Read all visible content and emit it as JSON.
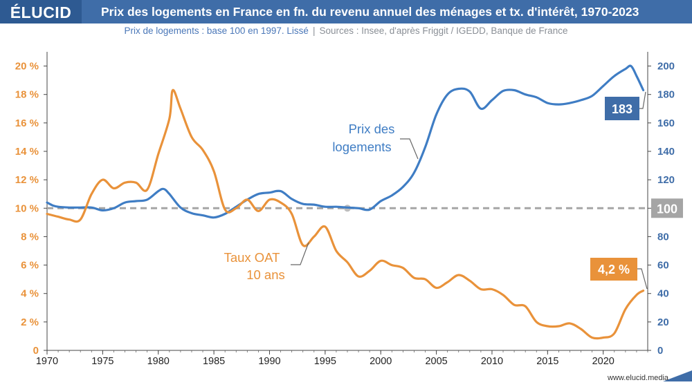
{
  "header": {
    "logo": "ÉLUCID",
    "title": "Prix des logements en France en fn. du revenu annuel des ménages et tx. d'intérêt, 1970-2023"
  },
  "subtitle": {
    "left": "Prix de logements : base 100 en 1997. Lissé",
    "separator": "|",
    "right": "Sources : Insee, d'après Friggit / IGEDD, Banque de France"
  },
  "footer": {
    "url": "www.elucid.media"
  },
  "colors": {
    "blue": "#3f7dc4",
    "orange": "#e9923a",
    "reference": "#a5a5a5",
    "header": "#3f6da8"
  },
  "chart_data": {
    "type": "line",
    "xlim": [
      1970,
      2024
    ],
    "x_ticks": [
      1970,
      1975,
      1980,
      1985,
      1990,
      1995,
      2000,
      2005,
      2010,
      2015,
      2020
    ],
    "left_axis": {
      "ylim": [
        0,
        21
      ],
      "ticks": [
        "0",
        "2 %",
        "4 %",
        "6 %",
        "8 %",
        "10 %",
        "12 %",
        "14 %",
        "16 %",
        "18 %",
        "20 %"
      ],
      "tick_values": [
        0,
        2,
        4,
        6,
        8,
        10,
        12,
        14,
        16,
        18,
        20
      ]
    },
    "right_axis": {
      "ylim": [
        0,
        210
      ],
      "ticks": [
        "0",
        "20",
        "40",
        "60",
        "80",
        "100",
        "120",
        "140",
        "160",
        "180",
        "200"
      ],
      "tick_values": [
        0,
        20,
        40,
        60,
        80,
        100,
        120,
        140,
        160,
        180,
        200
      ]
    },
    "reference_line": {
      "value": 100,
      "label": "100",
      "marker_x": 1997
    },
    "series": [
      {
        "name": "Prix des logements",
        "axis": "right",
        "x": [
          1970,
          1970.5,
          1971,
          1972,
          1973,
          1974,
          1975,
          1976,
          1977,
          1978,
          1979,
          1980,
          1980.5,
          1981,
          1982,
          1983,
          1984,
          1985,
          1986,
          1987,
          1988,
          1989,
          1990,
          1991,
          1992,
          1993,
          1994,
          1995,
          1996,
          1997,
          1998,
          1999,
          2000,
          2001,
          2002,
          2003,
          2004,
          2005,
          2006,
          2007,
          2008,
          2009,
          2010,
          2011,
          2012,
          2013,
          2014,
          2015,
          2016,
          2017,
          2018,
          2019,
          2020,
          2021,
          2022,
          2022.5,
          2023,
          2023.6
        ],
        "values": [
          104,
          102,
          101,
          100.5,
          100.5,
          100.5,
          98.5,
          100,
          104,
          105,
          106,
          112,
          113.5,
          110,
          100.5,
          96.5,
          95,
          93.5,
          96,
          101,
          106,
          110,
          111,
          112,
          106.5,
          103,
          102.5,
          101,
          101,
          100.5,
          100,
          99,
          105,
          109,
          115,
          125,
          143,
          166,
          180,
          184,
          182,
          170,
          176,
          182.5,
          183,
          180,
          178,
          174,
          173,
          174,
          176,
          179,
          186,
          193,
          198,
          200,
          193,
          183
        ]
      },
      {
        "name": "Taux OAT 10 ans",
        "axis": "left",
        "x": [
          1970,
          1971,
          1972,
          1973,
          1974,
          1975,
          1976,
          1977,
          1978,
          1979,
          1980,
          1981,
          1981.3,
          1982,
          1983,
          1984,
          1985,
          1986,
          1987,
          1988,
          1989,
          1990,
          1991,
          1992,
          1993,
          1994,
          1995,
          1996,
          1997,
          1998,
          1999,
          2000,
          2001,
          2002,
          2003,
          2004,
          2005,
          2006,
          2007,
          2008,
          2009,
          2010,
          2011,
          2012,
          2013,
          2014,
          2015,
          2016,
          2017,
          2018,
          2019,
          2020,
          2021,
          2022,
          2023,
          2023.6
        ],
        "values": [
          9.6,
          9.4,
          9.2,
          9.2,
          11.0,
          12.0,
          11.4,
          11.8,
          11.8,
          11.3,
          13.8,
          16.3,
          18.3,
          17.0,
          15.0,
          14.1,
          12.6,
          9.9,
          10.0,
          10.6,
          9.8,
          10.6,
          10.4,
          9.6,
          7.4,
          8.0,
          8.7,
          7.0,
          6.2,
          5.2,
          5.6,
          6.3,
          6.0,
          5.8,
          5.1,
          5.0,
          4.4,
          4.8,
          5.3,
          4.9,
          4.3,
          4.3,
          3.9,
          3.2,
          3.1,
          2.0,
          1.7,
          1.7,
          1.9,
          1.5,
          0.9,
          0.9,
          1.2,
          2.9,
          3.9,
          4.2
        ]
      }
    ],
    "annotations": {
      "blue_label": [
        "Prix des",
        "logements"
      ],
      "orange_label": [
        "Taux OAT",
        "10 ans"
      ],
      "blue_end_value": "183",
      "orange_end_value": "4,2 %"
    }
  }
}
